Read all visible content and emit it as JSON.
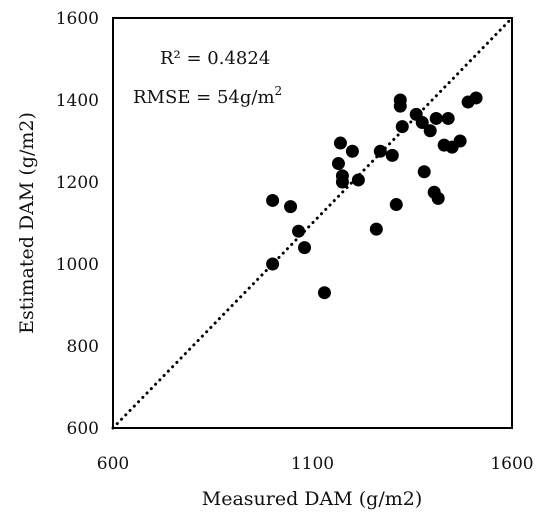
{
  "chart_data": {
    "type": "scatter",
    "title": "",
    "xlabel": "Measured DAM (g/m2)",
    "ylabel": "Estimated DAM (g/m2)",
    "xlim": [
      600,
      1600
    ],
    "ylim": [
      600,
      1600
    ],
    "x_ticks": [
      "600",
      "1100",
      "1600"
    ],
    "y_ticks": [
      "600",
      "800",
      "1000",
      "1200",
      "1400",
      "1600"
    ],
    "grid": false,
    "reference_line": "1:1 dotted",
    "annotations": {
      "r2": "R² = 0.4824",
      "rmse_prefix": "RMSE = 54g/m",
      "rmse_sup": "2"
    },
    "series": [
      {
        "x": [
          1000,
          1000,
          1045,
          1065,
          1080,
          1130,
          1165,
          1170,
          1175,
          1175,
          1200,
          1215,
          1260,
          1270,
          1300,
          1310,
          1320,
          1320,
          1325,
          1360,
          1375,
          1380,
          1395,
          1405,
          1410,
          1415,
          1430,
          1440,
          1450,
          1470,
          1490,
          1510
        ],
        "y": [
          1000,
          1155,
          1140,
          1080,
          1040,
          930,
          1245,
          1295,
          1200,
          1215,
          1275,
          1205,
          1085,
          1275,
          1265,
          1145,
          1400,
          1385,
          1335,
          1365,
          1345,
          1225,
          1325,
          1175,
          1355,
          1160,
          1290,
          1355,
          1285,
          1300,
          1395,
          1405
        ]
      }
    ]
  }
}
